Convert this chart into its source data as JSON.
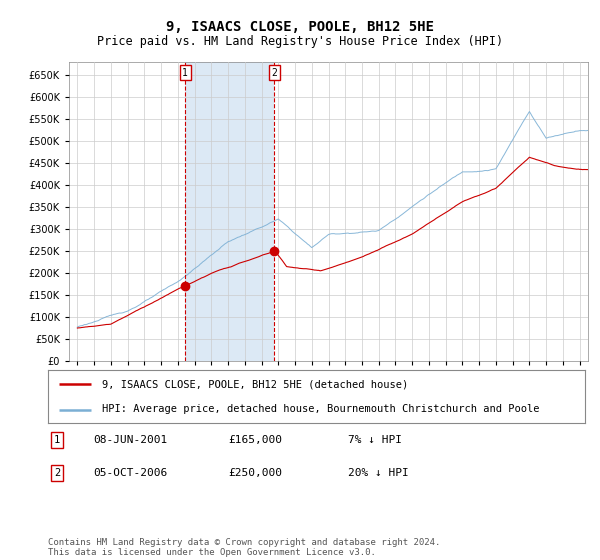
{
  "title": "9, ISAACS CLOSE, POOLE, BH12 5HE",
  "subtitle": "Price paid vs. HM Land Registry's House Price Index (HPI)",
  "ylim": [
    0,
    680000
  ],
  "yticks": [
    0,
    50000,
    100000,
    150000,
    200000,
    250000,
    300000,
    350000,
    400000,
    450000,
    500000,
    550000,
    600000,
    650000
  ],
  "xlim_start": 1994.5,
  "xlim_end": 2025.5,
  "grid_color": "#cccccc",
  "plot_bg": "#ffffff",
  "hpi_color": "#7bafd4",
  "price_color": "#cc0000",
  "vline_color": "#cc0000",
  "shade_color": "#dce9f5",
  "transactions": [
    {
      "label": "1",
      "date": "08-JUN-2001",
      "price": "£165,000",
      "hpi": "7% ↓ HPI",
      "year": 2001.44
    },
    {
      "label": "2",
      "date": "05-OCT-2006",
      "price": "£250,000",
      "hpi": "20% ↓ HPI",
      "year": 2006.76
    }
  ],
  "legend_property": "9, ISAACS CLOSE, POOLE, BH12 5HE (detached house)",
  "legend_hpi": "HPI: Average price, detached house, Bournemouth Christchurch and Poole",
  "footer": "Contains HM Land Registry data © Crown copyright and database right 2024.\nThis data is licensed under the Open Government Licence v3.0.",
  "title_fontsize": 10,
  "subtitle_fontsize": 8.5,
  "legend_fontsize": 7.5,
  "transaction_fontsize": 8,
  "footer_fontsize": 6.5
}
